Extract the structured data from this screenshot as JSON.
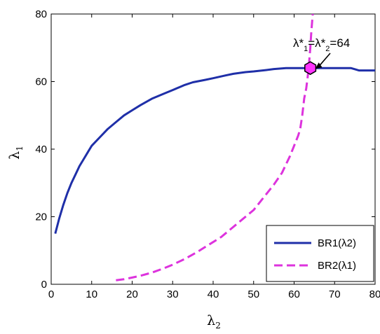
{
  "chart_data": {
    "type": "line",
    "xlabel": {
      "base": "λ",
      "sub": "2"
    },
    "ylabel": {
      "base": "λ",
      "sub": "1"
    },
    "xlim": [
      0,
      80
    ],
    "ylim": [
      0,
      80
    ],
    "xticks": [
      "0",
      "10",
      "20",
      "30",
      "40",
      "50",
      "60",
      "70",
      "80"
    ],
    "yticks": [
      "0",
      "20",
      "40",
      "60",
      "80"
    ],
    "grid": false,
    "legend_position": "bottom-right",
    "series": [
      {
        "name": "BR1(λ2)",
        "color": "#1f2fa8",
        "style": "solid",
        "x": [
          1,
          2,
          3,
          4,
          5,
          6,
          7,
          8,
          9,
          10,
          12,
          14,
          16,
          18,
          20,
          22,
          25,
          28,
          30,
          33,
          35,
          38,
          40,
          43,
          45,
          48,
          50,
          53,
          55,
          58,
          60,
          62,
          64,
          66,
          70,
          74,
          76,
          78,
          80
        ],
        "y": [
          15,
          19.5,
          23.5,
          27,
          30,
          32.5,
          35,
          37,
          39,
          41,
          43.5,
          46,
          48,
          50,
          51.5,
          53,
          55,
          56.5,
          57.5,
          59,
          59.8,
          60.5,
          61,
          61.8,
          62.3,
          62.8,
          63,
          63.4,
          63.7,
          64,
          64,
          64,
          64,
          64,
          64,
          64,
          63.3,
          63.3,
          63.3
        ]
      },
      {
        "name": "BR2(λ1)",
        "color": "#dd33dd",
        "style": "dashed",
        "x": [
          16,
          18,
          20,
          22,
          25,
          28,
          30,
          33,
          36,
          38,
          40,
          42,
          45,
          48,
          50,
          52,
          55,
          57,
          59,
          60,
          61,
          61.5,
          62,
          62.5,
          63,
          63.3,
          63.6,
          63.8,
          64,
          64.2,
          64.4,
          64.6
        ],
        "y": [
          1.2,
          1.5,
          2,
          2.5,
          3.5,
          4.8,
          5.8,
          7.5,
          9.5,
          11,
          12.5,
          14,
          17,
          20,
          22,
          25,
          29.5,
          33,
          38,
          41,
          44,
          46,
          50,
          55,
          58,
          61,
          64,
          67,
          70,
          74,
          77,
          80
        ]
      }
    ],
    "equilibrium": {
      "x": 64,
      "y": 64,
      "color": "#ff33ff"
    },
    "annotation": {
      "parts": [
        {
          "t": "λ*",
          "sub": false
        },
        {
          "t": "1",
          "sub": true
        },
        {
          "t": "=λ*",
          "sub": false
        },
        {
          "t": "2",
          "sub": true
        },
        {
          "t": "=64",
          "sub": false
        }
      ]
    }
  }
}
